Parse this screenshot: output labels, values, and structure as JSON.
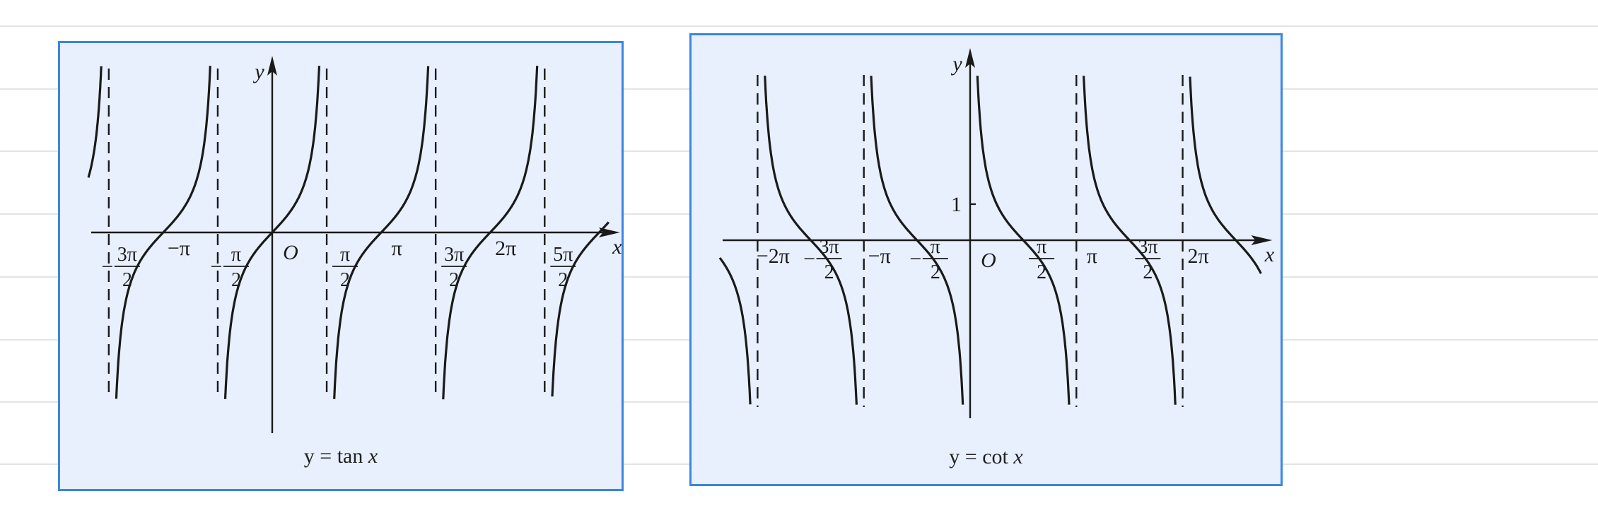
{
  "chart_data": [
    {
      "type": "line",
      "function": "tan",
      "caption_prefix": "y = tan",
      "caption_var": "x",
      "xlabel": "x",
      "ylabel": "y",
      "origin_label": "O",
      "x_ticks": [
        {
          "value": -4.712,
          "num": "3π",
          "den": "2",
          "sign": "−"
        },
        {
          "value": -3.1416,
          "text": "−π"
        },
        {
          "value": -1.5708,
          "num": "π",
          "den": "2",
          "sign": "−"
        },
        {
          "value": 1.5708,
          "num": "π",
          "den": "2",
          "sign": ""
        },
        {
          "value": 3.1416,
          "text": "π"
        },
        {
          "value": 4.712,
          "num": "3π",
          "den": "2",
          "sign": ""
        },
        {
          "value": 6.2832,
          "text": "2π"
        },
        {
          "value": 7.854,
          "num": "5π",
          "den": "2",
          "sign": ""
        }
      ],
      "y_ticks": [],
      "asymptotes": [
        -4.712,
        -1.5708,
        1.5708,
        4.712,
        7.854
      ],
      "xlim": [
        -5.3,
        9.7
      ],
      "ylim": [
        -4.6,
        4.6
      ]
    },
    {
      "type": "line",
      "function": "cot",
      "caption_prefix": "y = cot",
      "caption_var": "x",
      "xlabel": "x",
      "ylabel": "y",
      "origin_label": "O",
      "x_ticks": [
        {
          "value": -6.2832,
          "text": "−2π"
        },
        {
          "value": -4.712,
          "num": "3π",
          "den": "2",
          "sign": "−"
        },
        {
          "value": -3.1416,
          "text": "−π"
        },
        {
          "value": -1.5708,
          "num": "π",
          "den": "2",
          "sign": "−"
        },
        {
          "value": 1.5708,
          "num": "π",
          "den": "2",
          "sign": ""
        },
        {
          "value": 3.1416,
          "text": "π"
        },
        {
          "value": 4.712,
          "num": "3π",
          "den": "2",
          "sign": ""
        },
        {
          "value": 6.2832,
          "text": "2π"
        }
      ],
      "y_ticks": [
        {
          "value": 1,
          "text": "1"
        }
      ],
      "asymptotes": [
        -6.2832,
        -3.1416,
        0,
        3.1416,
        6.2832
      ],
      "xlim": [
        -7.4,
        8.6
      ],
      "ylim": [
        -4.7,
        4.7
      ]
    }
  ]
}
